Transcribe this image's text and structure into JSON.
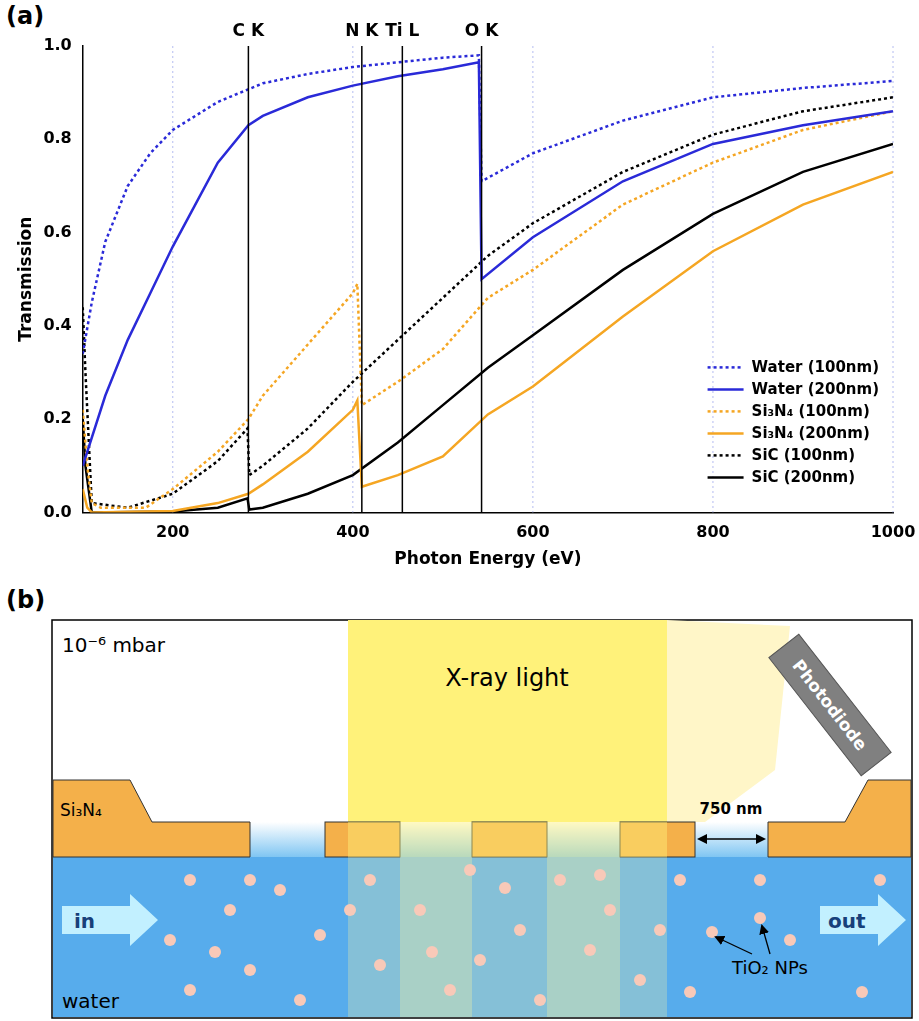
{
  "chart_data": {
    "type": "line",
    "panel_label": "(a)",
    "x_label": "Photon Energy (eV)",
    "y_label": "Transmission",
    "xlim": [
      100,
      1000
    ],
    "xticks": [
      200,
      400,
      600,
      800,
      1000
    ],
    "ylim": [
      0,
      1
    ],
    "yticks": [
      {
        "value": 0,
        "label": "0.0"
      },
      {
        "value": 0.2,
        "label": "0.2"
      },
      {
        "value": 0.4,
        "label": "0.4"
      },
      {
        "value": 0.6,
        "label": "0.6"
      },
      {
        "value": 0.8,
        "label": "0.8"
      },
      {
        "value": 1,
        "label": "1.0"
      }
    ],
    "grid": true,
    "legend": "lower right",
    "annotations": [
      {
        "label": "C K",
        "x": 284
      },
      {
        "label": "N K",
        "x": 410
      },
      {
        "label": "Ti L",
        "x": 455
      },
      {
        "label": "O K",
        "x": 543
      }
    ],
    "series": [
      {
        "name": "Water (100nm)",
        "color": "#2a2ad8",
        "line_style": "dotted",
        "x": [
          100,
          110,
          125,
          150,
          175,
          200,
          250,
          300,
          350,
          400,
          450,
          500,
          540,
          543,
          600,
          700,
          800,
          900,
          1000
        ],
        "values": [
          0.34,
          0.45,
          0.58,
          0.7,
          0.77,
          0.82,
          0.88,
          0.92,
          0.94,
          0.955,
          0.965,
          0.975,
          0.98,
          0.71,
          0.77,
          0.84,
          0.89,
          0.91,
          0.925
        ]
      },
      {
        "name": "Water (200nm)",
        "color": "#2a2ad8",
        "line_style": "solid",
        "x": [
          100,
          125,
          150,
          175,
          200,
          225,
          250,
          284,
          300,
          350,
          400,
          450,
          500,
          540,
          543,
          600,
          700,
          800,
          900,
          1000
        ],
        "values": [
          0.1,
          0.25,
          0.37,
          0.47,
          0.57,
          0.66,
          0.75,
          0.83,
          0.85,
          0.89,
          0.915,
          0.935,
          0.95,
          0.965,
          0.5,
          0.59,
          0.71,
          0.79,
          0.83,
          0.86
        ]
      },
      {
        "name": "Si₃N₄ (100nm)",
        "color": "#f5a623",
        "line_style": "dotted",
        "x": [
          100,
          105,
          110,
          120,
          170,
          200,
          250,
          284,
          300,
          350,
          400,
          405,
          410,
          450,
          500,
          550,
          600,
          700,
          800,
          900,
          1000
        ],
        "values": [
          0.22,
          0.1,
          0.02,
          0.01,
          0.01,
          0.05,
          0.13,
          0.2,
          0.25,
          0.36,
          0.47,
          0.49,
          0.23,
          0.28,
          0.35,
          0.46,
          0.52,
          0.66,
          0.75,
          0.82,
          0.86
        ]
      },
      {
        "name": "Si₃N₄ (200nm)",
        "color": "#f5a623",
        "line_style": "solid",
        "x": [
          100,
          105,
          110,
          200,
          250,
          284,
          300,
          350,
          400,
          405,
          410,
          450,
          500,
          550,
          600,
          700,
          800,
          900,
          1000
        ],
        "values": [
          0.05,
          0.01,
          0,
          0.003,
          0.02,
          0.04,
          0.06,
          0.13,
          0.22,
          0.24,
          0.055,
          0.08,
          0.12,
          0.21,
          0.27,
          0.42,
          0.56,
          0.66,
          0.73
        ]
      },
      {
        "name": "SiC (100nm)",
        "color": "#000000",
        "line_style": "dotted",
        "x": [
          100,
          103,
          110,
          150,
          200,
          250,
          283,
          285,
          300,
          350,
          400,
          450,
          500,
          550,
          600,
          700,
          800,
          900,
          1000
        ],
        "values": [
          0.44,
          0.3,
          0.02,
          0.01,
          0.04,
          0.11,
          0.18,
          0.08,
          0.1,
          0.18,
          0.28,
          0.37,
          0.46,
          0.55,
          0.62,
          0.73,
          0.81,
          0.86,
          0.89
        ]
      },
      {
        "name": "SiC (200nm)",
        "color": "#000000",
        "line_style": "solid",
        "x": [
          100,
          103,
          110,
          200,
          250,
          283,
          285,
          300,
          350,
          400,
          450,
          500,
          550,
          600,
          700,
          800,
          900,
          1000
        ],
        "values": [
          0.2,
          0.1,
          0,
          0.002,
          0.01,
          0.03,
          0.006,
          0.01,
          0.04,
          0.08,
          0.15,
          0.23,
          0.31,
          0.38,
          0.52,
          0.64,
          0.73,
          0.79
        ]
      }
    ]
  },
  "diagram": {
    "panel_label": "(b)",
    "pressure": "10⁻⁶ mbar",
    "beam": "X-ray light",
    "detector": "Photodiode",
    "membrane": "Si₃N₄",
    "gap": "750 nm",
    "inlet": "in",
    "outlet": "out",
    "liquid": "water",
    "particles": "TiO₂ NPs"
  }
}
